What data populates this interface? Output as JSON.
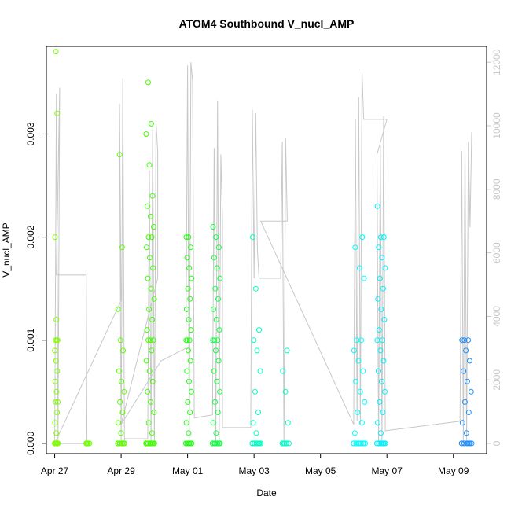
{
  "chart_data": {
    "type": "scatter",
    "title": "ATOM4 Southbound V_nucl_AMP",
    "xlabel": "Date",
    "ylabel": "V_nucl_AMP",
    "x_unit": "days since Apr 27",
    "xlim": [
      -0.25,
      13.0
    ],
    "ylim": [
      -0.0001,
      0.00385
    ],
    "x_ticks": [
      {
        "label": "Apr 27",
        "value": 0
      },
      {
        "label": "Apr 29",
        "value": 2
      },
      {
        "label": "May 01",
        "value": 4
      },
      {
        "label": "May 03",
        "value": 6
      },
      {
        "label": "May 05",
        "value": 8
      },
      {
        "label": "May 07",
        "value": 10
      },
      {
        "label": "May 09",
        "value": 12
      }
    ],
    "y_ticks": [
      {
        "label": "0.000",
        "value": 0.0
      },
      {
        "label": "0.001",
        "value": 0.001
      },
      {
        "label": "0.002",
        "value": 0.002
      },
      {
        "label": "0.003",
        "value": 0.003
      }
    ],
    "y2_ticks": [
      {
        "label": "0",
        "value": 0
      },
      {
        "label": "2000",
        "value": 2000
      },
      {
        "label": "4000",
        "value": 4000
      },
      {
        "label": "6000",
        "value": 6000
      },
      {
        "label": "8000",
        "value": 8000
      },
      {
        "label": "10000",
        "value": 10000
      },
      {
        "label": "12000",
        "value": 12000
      }
    ],
    "y2lim": [
      -320,
      12500
    ],
    "series": [
      {
        "name": "V_nucl_AMP",
        "kind": "points",
        "clusters": [
          {
            "x_start": 0.0,
            "x_end": 0.1,
            "color": "#80ff00",
            "y": [
              0,
              0,
              0,
              0,
              0.0001,
              0.0002,
              0.0003,
              0.0004,
              0.0004,
              0.0005,
              0.0006,
              0.0007,
              0.0008,
              0.0009,
              0.001,
              0.001,
              0.001,
              0.0012,
              0.002,
              0.0032,
              0.0038
            ]
          },
          {
            "x_start": 0.95,
            "x_end": 1.05,
            "color": "#70ff00",
            "y": [
              0,
              0,
              0
            ]
          },
          {
            "x_start": 1.9,
            "x_end": 2.1,
            "color": "#5cff00",
            "y": [
              0,
              0,
              0,
              0,
              0.0001,
              0.0002,
              0.0003,
              0.0004,
              0.0005,
              0.0006,
              0.0007,
              0.0009,
              0.001,
              0.0013,
              0.0019,
              0.0028
            ]
          },
          {
            "x_start": 2.75,
            "x_end": 3.0,
            "color": "#40ff00",
            "y": [
              0,
              0,
              0,
              0,
              0,
              0,
              0.0001,
              0.0002,
              0.0003,
              0.0004,
              0.0005,
              0.0006,
              0.0007,
              0.0008,
              0.0009,
              0.001,
              0.001,
              0.001,
              0.0011,
              0.0012,
              0.0013,
              0.0014,
              0.0015,
              0.0016,
              0.0017,
              0.0018,
              0.0019,
              0.002,
              0.002,
              0.0021,
              0.0022,
              0.0023,
              0.0024,
              0.0027,
              0.003,
              0.0031,
              0.0035
            ]
          },
          {
            "x_start": 3.95,
            "x_end": 4.12,
            "color": "#20ff10",
            "y": [
              0,
              0,
              0,
              0,
              0.0001,
              0.0002,
              0.0003,
              0.0004,
              0.0005,
              0.0006,
              0.0007,
              0.0008,
              0.0009,
              0.001,
              0.001,
              0.001,
              0.0011,
              0.0012,
              0.0013,
              0.0014,
              0.0015,
              0.0016,
              0.0017,
              0.0018,
              0.0019,
              0.002,
              0.002
            ]
          },
          {
            "x_start": 4.75,
            "x_end": 4.98,
            "color": "#10ff40",
            "y": [
              0,
              0,
              0,
              0,
              0.0001,
              0.0002,
              0.0003,
              0.0004,
              0.0005,
              0.0006,
              0.0007,
              0.0008,
              0.0009,
              0.001,
              0.001,
              0.001,
              0.0011,
              0.0012,
              0.0013,
              0.0014,
              0.0015,
              0.0016,
              0.0017,
              0.0018,
              0.0019,
              0.002,
              0.0021
            ]
          },
          {
            "x_start": 5.95,
            "x_end": 6.2,
            "color": "#00ffc0",
            "y": [
              0,
              0,
              0,
              0,
              0.0001,
              0.0002,
              0.0003,
              0.0005,
              0.0007,
              0.0009,
              0.001,
              0.0011,
              0.0015,
              0.002
            ]
          },
          {
            "x_start": 6.85,
            "x_end": 7.05,
            "color": "#00ffc8",
            "y": [
              0,
              0,
              0,
              0.0002,
              0.0005,
              0.0007,
              0.0009
            ]
          },
          {
            "x_start": 9.0,
            "x_end": 9.35,
            "color": "#00ffff",
            "y": [
              0,
              0,
              0,
              0,
              0,
              0.0001,
              0.0002,
              0.0003,
              0.0004,
              0.0005,
              0.0006,
              0.0007,
              0.0008,
              0.0009,
              0.001,
              0.001,
              0.0016,
              0.0017,
              0.0019,
              0.002
            ]
          },
          {
            "x_start": 9.7,
            "x_end": 9.95,
            "color": "#00f0ff",
            "y": [
              0,
              0,
              0,
              0,
              0.0001,
              0.0002,
              0.0003,
              0.0004,
              0.0005,
              0.0006,
              0.0007,
              0.0008,
              0.0009,
              0.001,
              0.001,
              0.0011,
              0.0012,
              0.0013,
              0.0014,
              0.0015,
              0.0016,
              0.0017,
              0.0018,
              0.0019,
              0.002,
              0.002,
              0.0023
            ]
          },
          {
            "x_start": 12.25,
            "x_end": 12.55,
            "color": "#1e90ff",
            "y": [
              0,
              0,
              0,
              0,
              0.0001,
              0.0002,
              0.0003,
              0.0004,
              0.0005,
              0.0006,
              0.0007,
              0.0008,
              0.0009,
              0.001,
              0.001,
              0.001
            ]
          }
        ]
      },
      {
        "name": "secondary line (right axis)",
        "kind": "line",
        "color": "#c8c8c8",
        "points": [
          [
            0.0,
            0
          ],
          [
            0.05,
            11000
          ],
          [
            0.1,
            0
          ],
          [
            0.15,
            11200
          ],
          [
            0.05,
            5300
          ],
          [
            0.2,
            5300
          ],
          [
            0.95,
            5300
          ],
          [
            0.97,
            0
          ],
          [
            0.0,
            0
          ],
          [
            2.0,
            4500
          ],
          [
            1.95,
            10700
          ],
          [
            2.0,
            0
          ],
          [
            2.05,
            11500
          ],
          [
            2.1,
            0
          ],
          [
            2.1,
            150
          ],
          [
            2.8,
            150
          ],
          [
            2.85,
            8600
          ],
          [
            2.9,
            0
          ],
          [
            2.95,
            9900
          ],
          [
            3.0,
            0
          ],
          [
            3.05,
            10100
          ],
          [
            3.1,
            9200
          ],
          [
            3.1,
            5200
          ],
          [
            2.0,
            600
          ],
          [
            3.2,
            2600
          ],
          [
            3.95,
            3000
          ],
          [
            4.0,
            11900
          ],
          [
            4.05,
            0
          ],
          [
            4.1,
            12000
          ],
          [
            4.15,
            11400
          ],
          [
            4.2,
            800
          ],
          [
            4.75,
            900
          ],
          [
            4.8,
            9300
          ],
          [
            4.85,
            0
          ],
          [
            4.9,
            10800
          ],
          [
            4.95,
            0
          ],
          [
            5.0,
            9100
          ],
          [
            5.05,
            7100
          ],
          [
            5.05,
            500
          ],
          [
            5.9,
            500
          ],
          [
            5.95,
            10500
          ],
          [
            6.0,
            5200
          ],
          [
            6.05,
            10400
          ],
          [
            6.1,
            6100
          ],
          [
            6.15,
            5200
          ],
          [
            6.8,
            5200
          ],
          [
            6.85,
            9500
          ],
          [
            6.9,
            0
          ],
          [
            6.95,
            9600
          ],
          [
            7.0,
            7000
          ],
          [
            6.2,
            7000
          ],
          [
            9.0,
            600
          ],
          [
            9.05,
            10200
          ],
          [
            9.1,
            700
          ],
          [
            9.15,
            10900
          ],
          [
            9.2,
            600
          ],
          [
            9.25,
            11700
          ],
          [
            9.3,
            10200
          ],
          [
            10.0,
            10200
          ],
          [
            9.7,
            9100
          ],
          [
            9.75,
            0
          ],
          [
            9.8,
            9400
          ],
          [
            9.85,
            0
          ],
          [
            9.9,
            10300
          ],
          [
            9.95,
            400
          ],
          [
            12.2,
            700
          ],
          [
            12.25,
            9200
          ],
          [
            12.3,
            0
          ],
          [
            12.35,
            9400
          ],
          [
            12.4,
            0
          ],
          [
            12.45,
            9500
          ],
          [
            12.5,
            6800
          ],
          [
            12.55,
            9800
          ]
        ]
      }
    ]
  }
}
